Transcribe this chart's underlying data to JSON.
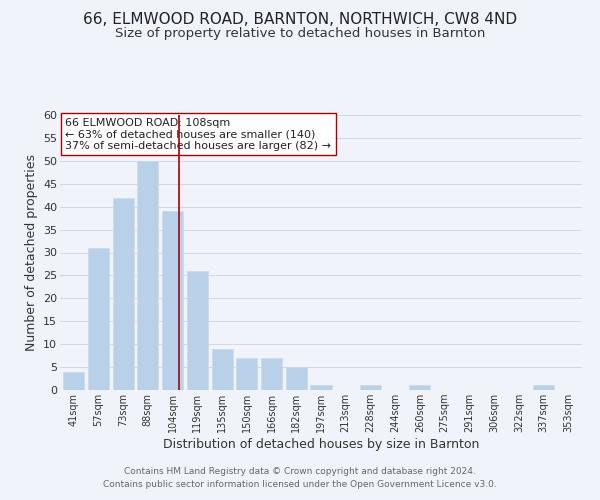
{
  "title": "66, ELMWOOD ROAD, BARNTON, NORTHWICH, CW8 4ND",
  "subtitle": "Size of property relative to detached houses in Barnton",
  "xlabel": "Distribution of detached houses by size in Barnton",
  "ylabel": "Number of detached properties",
  "bin_labels": [
    "41sqm",
    "57sqm",
    "73sqm",
    "88sqm",
    "104sqm",
    "119sqm",
    "135sqm",
    "150sqm",
    "166sqm",
    "182sqm",
    "197sqm",
    "213sqm",
    "228sqm",
    "244sqm",
    "260sqm",
    "275sqm",
    "291sqm",
    "306sqm",
    "322sqm",
    "337sqm",
    "353sqm"
  ],
  "bar_values": [
    4,
    31,
    42,
    50,
    39,
    26,
    9,
    7,
    7,
    5,
    1,
    0,
    1,
    0,
    1,
    0,
    0,
    0,
    0,
    1,
    0
  ],
  "bar_color": "#b8d0e8",
  "bar_edge_color": "#ccdaeb",
  "grid_color": "#d0d8e8",
  "reference_line_x": 4.27,
  "reference_line_color": "#aa0000",
  "annotation_title": "66 ELMWOOD ROAD: 108sqm",
  "annotation_line1": "← 63% of detached houses are smaller (140)",
  "annotation_line2": "37% of semi-detached houses are larger (82) →",
  "annotation_box_color": "#ffffff",
  "annotation_box_edge": "#aa0000",
  "ylim": [
    0,
    60
  ],
  "yticks": [
    0,
    5,
    10,
    15,
    20,
    25,
    30,
    35,
    40,
    45,
    50,
    55,
    60
  ],
  "footer1": "Contains HM Land Registry data © Crown copyright and database right 2024.",
  "footer2": "Contains public sector information licensed under the Open Government Licence v3.0.",
  "background_color": "#f0f4fa",
  "plot_bg_color": "#eef2f8",
  "title_fontsize": 11,
  "subtitle_fontsize": 9.5,
  "footer_color": "#666666"
}
